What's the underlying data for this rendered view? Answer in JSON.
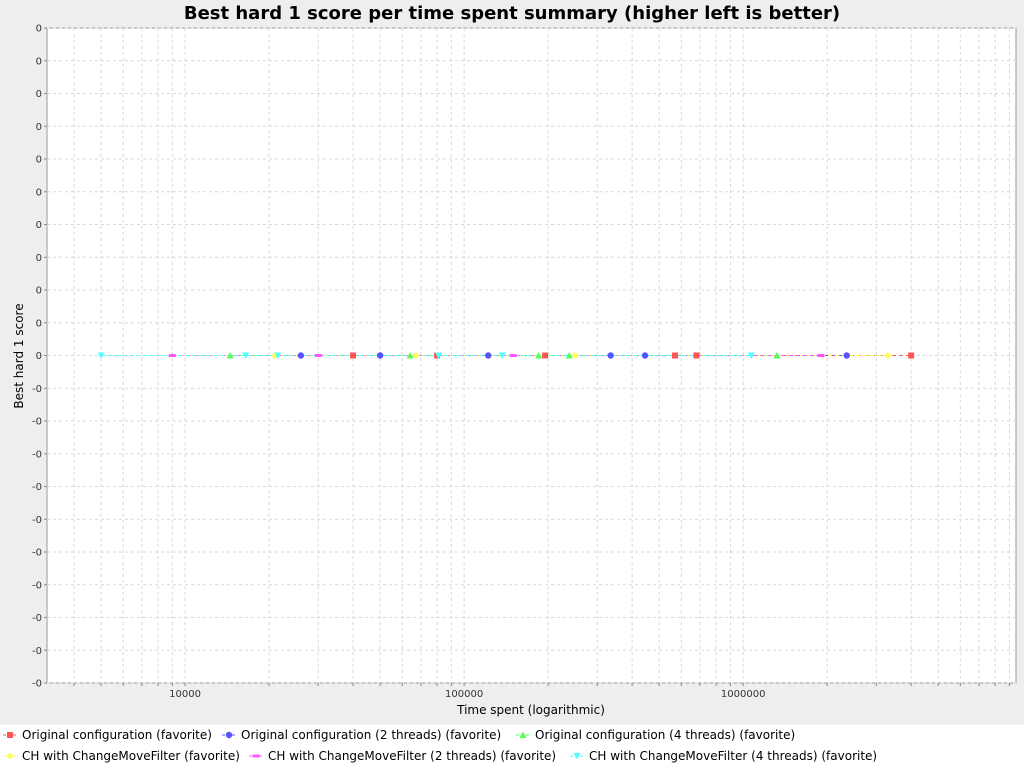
{
  "chart_data": {
    "type": "line",
    "title": "Best hard 1 score per time spent summary (higher left is better)",
    "xlabel": "Time spent (logarithmic)",
    "ylabel": "Best hard 1 score",
    "x_scale": "log",
    "xlim": [
      3200,
      9500000
    ],
    "x_tick_values": [
      10000,
      100000,
      1000000
    ],
    "x_tick_labels": [
      "10000",
      "100000",
      "1000000"
    ],
    "y_tick_labels": [
      "0",
      "0",
      "0",
      "0",
      "0",
      "0",
      "0",
      "0",
      "0",
      "0",
      "0",
      "-0",
      "-0",
      "-0",
      "-0",
      "-0",
      "-0",
      "-0",
      "-0",
      "-0",
      "-0"
    ],
    "grid": true,
    "legend_position": "bottom",
    "series": [
      {
        "name": "Original configuration (favorite)",
        "color": "#ff5555",
        "marker": "square",
        "x": [
          40000,
          80000,
          195000,
          570000,
          680000,
          4000000
        ],
        "y": [
          0,
          0,
          0,
          0,
          0,
          0
        ]
      },
      {
        "name": "Original configuration (2 threads) (favorite)",
        "color": "#5555ff",
        "marker": "circle",
        "x": [
          26000,
          50000,
          122000,
          335000,
          445000,
          2350000
        ],
        "y": [
          0,
          0,
          0,
          0,
          0,
          0
        ]
      },
      {
        "name": "Original configuration (4 threads) (favorite)",
        "color": "#55ff55",
        "marker": "triangle-up",
        "x": [
          14500,
          64000,
          185000,
          238000,
          1320000
        ],
        "y": [
          0,
          0,
          0,
          0,
          0
        ]
      },
      {
        "name": "CH with ChangeMoveFilter (favorite)",
        "color": "#ffff55",
        "marker": "diamond",
        "x": [
          21000,
          67000,
          250000,
          3300000
        ],
        "y": [
          0,
          0,
          0,
          0
        ]
      },
      {
        "name": "CH with ChangeMoveFilter (2 threads) (favorite)",
        "color": "#ff55ff",
        "marker": "hbar",
        "x": [
          9000,
          30000,
          150000,
          1900000
        ],
        "y": [
          0,
          0,
          0,
          0
        ]
      },
      {
        "name": "CH with ChangeMoveFilter (4 threads) (favorite)",
        "color": "#55ffff",
        "marker": "triangle-down",
        "x": [
          5000,
          16500,
          21500,
          81000,
          137000,
          1070000
        ],
        "y": [
          0,
          0,
          0,
          0,
          0,
          0
        ]
      }
    ]
  }
}
